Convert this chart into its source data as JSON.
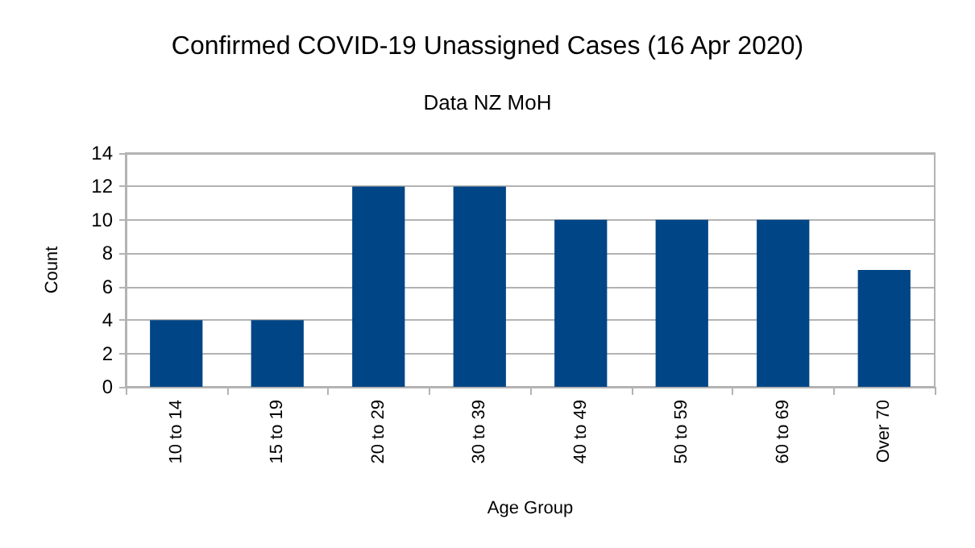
{
  "chart_data": {
    "type": "bar",
    "title": "Confirmed COVID-19 Unassigned Cases (16 Apr 2020)",
    "subtitle": "Data NZ MoH",
    "xlabel": "Age Group",
    "ylabel": "Count",
    "categories": [
      "10 to 14",
      "15 to 19",
      "20 to 29",
      "30 to 39",
      "40 to 49",
      "50 to 59",
      "60 to 69",
      "Over 70"
    ],
    "values": [
      4,
      4,
      12,
      12,
      10,
      10,
      10,
      7
    ],
    "color": "#004586",
    "ylim": [
      0,
      14
    ],
    "yticks": [
      0,
      2,
      4,
      6,
      8,
      10,
      12,
      14
    ],
    "grid": "y"
  }
}
